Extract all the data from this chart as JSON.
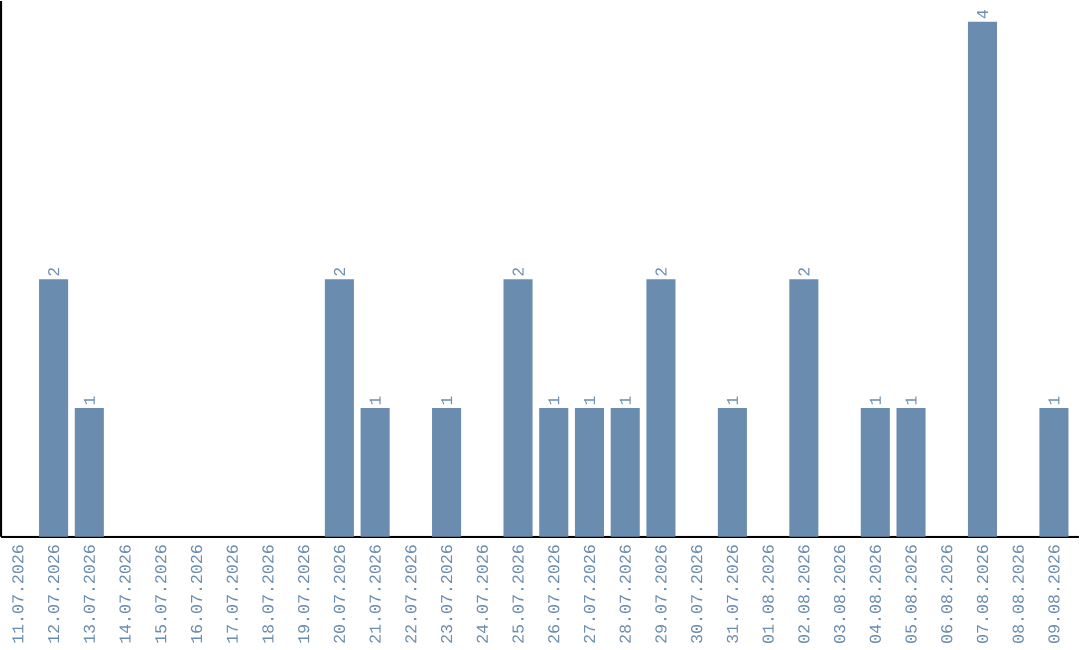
{
  "chart_data": {
    "type": "bar",
    "categories": [
      "11.07.2026",
      "12.07.2026",
      "13.07.2026",
      "14.07.2026",
      "15.07.2026",
      "16.07.2026",
      "17.07.2026",
      "18.07.2026",
      "19.07.2026",
      "20.07.2026",
      "21.07.2026",
      "22.07.2026",
      "23.07.2026",
      "24.07.2026",
      "25.07.2026",
      "26.07.2026",
      "27.07.2026",
      "28.07.2026",
      "29.07.2026",
      "30.07.2026",
      "31.07.2026",
      "01.08.2026",
      "02.08.2026",
      "03.08.2026",
      "04.08.2026",
      "05.08.2026",
      "06.08.2026",
      "07.08.2026",
      "08.08.2026",
      "09.08.2026"
    ],
    "values": [
      0,
      2,
      1,
      0,
      0,
      0,
      0,
      0,
      0,
      2,
      1,
      0,
      1,
      0,
      2,
      1,
      1,
      1,
      2,
      0,
      1,
      0,
      2,
      0,
      1,
      1,
      0,
      4,
      0,
      1
    ],
    "value_labels": [
      null,
      "2",
      "1",
      null,
      null,
      null,
      null,
      null,
      null,
      "2",
      "1",
      null,
      "1",
      null,
      "2",
      "1",
      "1",
      "1",
      "2",
      null,
      "1",
      null,
      "2",
      null,
      "1",
      "1",
      null,
      "4",
      null,
      "1"
    ],
    "color": "#6a8caf",
    "tick_labels": "x",
    "grid": false
  }
}
